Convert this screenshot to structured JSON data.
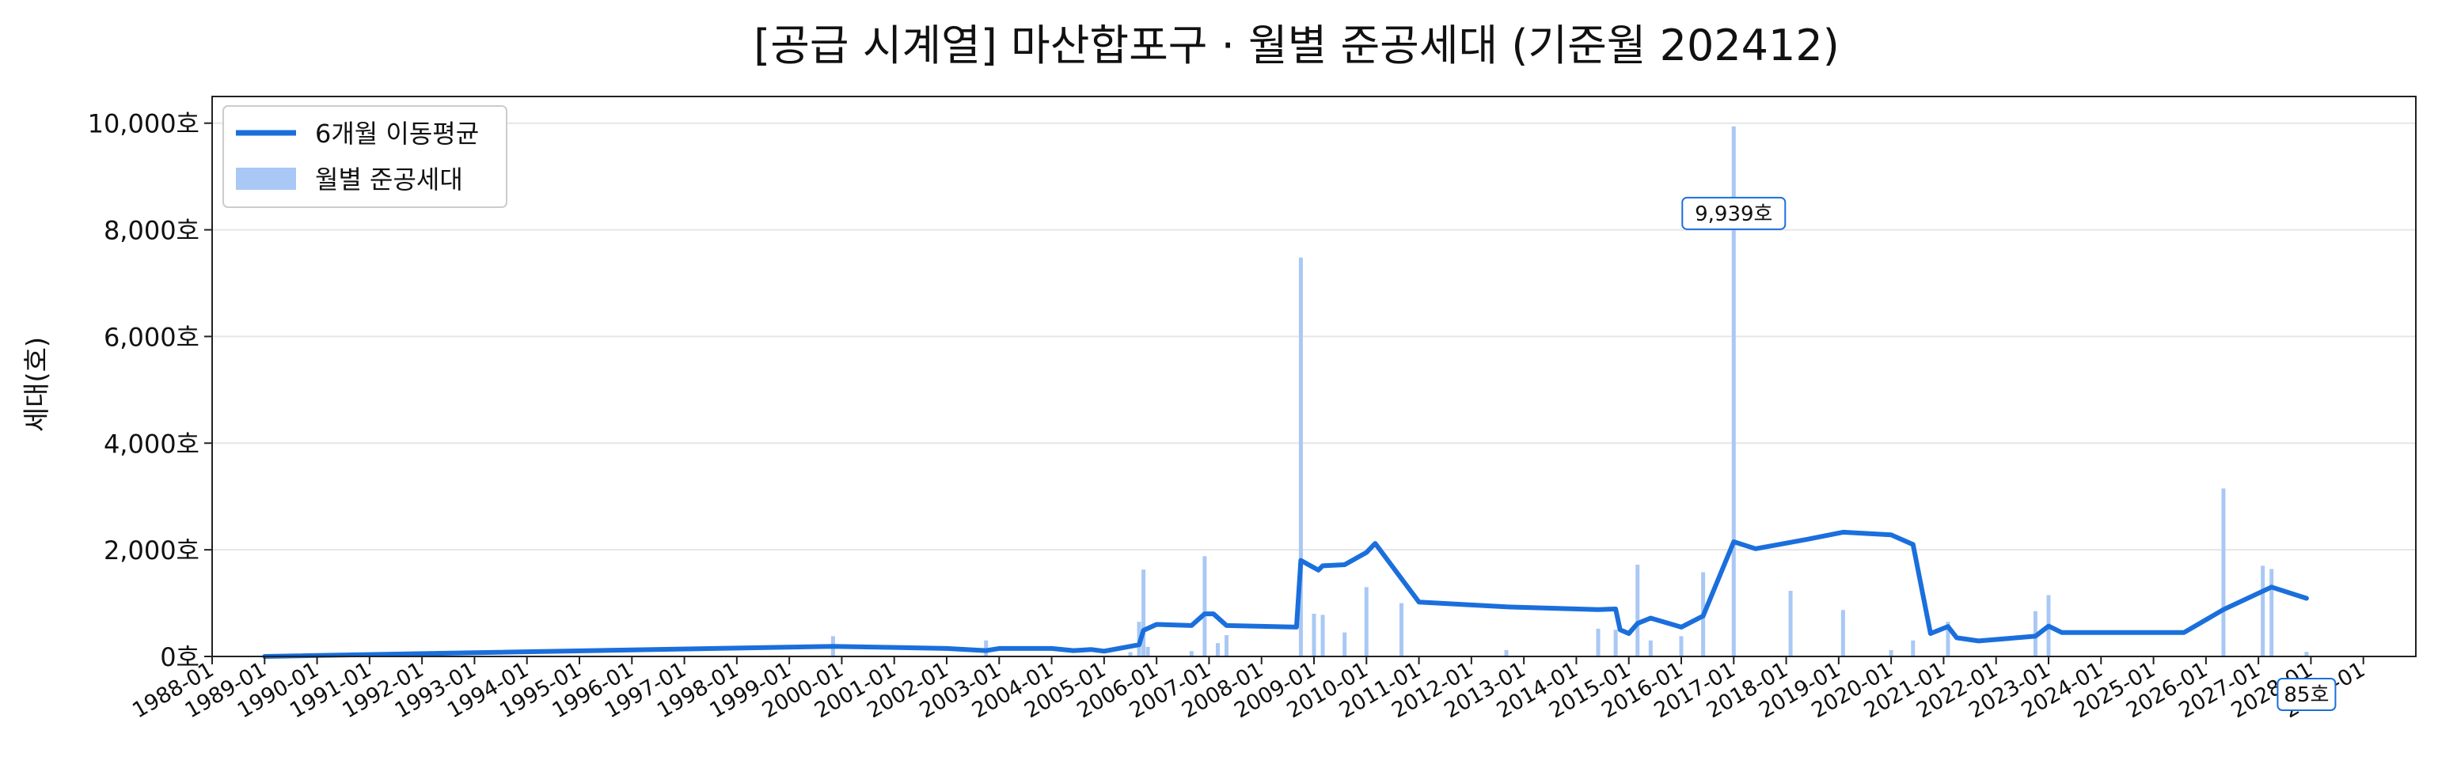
{
  "chart_data": {
    "type": "bar",
    "title": "[공급 시계열] 마산합포구 · 월별 준공세대 (기준월 202412)",
    "ylabel": "세대(호)",
    "xlabel": "",
    "ylim": [
      0,
      10500
    ],
    "xlim": [
      "1988-01",
      "2030-01"
    ],
    "y_ticks": [
      0,
      2000,
      4000,
      6000,
      8000,
      10000
    ],
    "y_tick_labels": [
      "0호",
      "2,000호",
      "4,000호",
      "6,000호",
      "8,000호",
      "10,000호"
    ],
    "x_tick_labels": [
      "1988-01",
      "1989-01",
      "1990-01",
      "1991-01",
      "1992-01",
      "1993-01",
      "1994-01",
      "1995-01",
      "1996-01",
      "1997-01",
      "1998-01",
      "1999-01",
      "2000-01",
      "2001-01",
      "2002-01",
      "2003-01",
      "2004-01",
      "2005-01",
      "2006-01",
      "2007-01",
      "2008-01",
      "2009-01",
      "2010-01",
      "2011-01",
      "2012-01",
      "2013-01",
      "2014-01",
      "2015-01",
      "2016-01",
      "2017-01",
      "2018-01",
      "2019-01",
      "2020-01",
      "2021-01",
      "2022-01",
      "2023-01",
      "2024-01",
      "2025-01",
      "2026-01",
      "2027-01",
      "2028-01",
      "2029-01"
    ],
    "grid": "horizontal",
    "legend_position": "upper-left",
    "colors": {
      "line": "#1a6fdc",
      "bar": "#a9c8f5",
      "frame": "#222222",
      "grid": "#e6e6e6"
    },
    "series": [
      {
        "name": "월별 준공세대",
        "kind": "bar",
        "points": [
          [
            "1999-11",
            380
          ],
          [
            "2002-10",
            300
          ],
          [
            "2005-07",
            80
          ],
          [
            "2005-09",
            650
          ],
          [
            "2005-10",
            1630
          ],
          [
            "2005-11",
            180
          ],
          [
            "2006-09",
            100
          ],
          [
            "2006-12",
            1880
          ],
          [
            "2007-03",
            250
          ],
          [
            "2007-05",
            400
          ],
          [
            "2008-10",
            7480
          ],
          [
            "2009-01",
            800
          ],
          [
            "2009-03",
            780
          ],
          [
            "2009-08",
            450
          ],
          [
            "2010-01",
            1300
          ],
          [
            "2010-09",
            1000
          ],
          [
            "2012-09",
            120
          ],
          [
            "2014-06",
            520
          ],
          [
            "2014-10",
            500
          ],
          [
            "2015-03",
            1720
          ],
          [
            "2015-06",
            300
          ],
          [
            "2016-01",
            380
          ],
          [
            "2016-06",
            1580
          ],
          [
            "2017-01",
            9939
          ],
          [
            "2018-02",
            1230
          ],
          [
            "2019-02",
            870
          ],
          [
            "2020-01",
            120
          ],
          [
            "2020-06",
            300
          ],
          [
            "2021-02",
            650
          ],
          [
            "2022-10",
            850
          ],
          [
            "2023-01",
            1150
          ],
          [
            "2026-05",
            3150
          ],
          [
            "2027-02",
            1700
          ],
          [
            "2027-04",
            1640
          ],
          [
            "2027-12",
            85
          ]
        ]
      },
      {
        "name": "6개월 이동평균",
        "kind": "line",
        "points": [
          [
            "1989-01",
            0
          ],
          [
            "1999-11",
            190
          ],
          [
            "2002-01",
            150
          ],
          [
            "2002-10",
            110
          ],
          [
            "2003-01",
            150
          ],
          [
            "2004-01",
            150
          ],
          [
            "2004-06",
            110
          ],
          [
            "2004-10",
            130
          ],
          [
            "2005-01",
            100
          ],
          [
            "2005-09",
            220
          ],
          [
            "2005-10",
            490
          ],
          [
            "2006-01",
            600
          ],
          [
            "2006-09",
            580
          ],
          [
            "2006-12",
            800
          ],
          [
            "2007-02",
            800
          ],
          [
            "2007-05",
            580
          ],
          [
            "2008-09",
            550
          ],
          [
            "2008-10",
            1800
          ],
          [
            "2009-02",
            1620
          ],
          [
            "2009-03",
            1700
          ],
          [
            "2009-08",
            1720
          ],
          [
            "2010-01",
            1950
          ],
          [
            "2010-03",
            2120
          ],
          [
            "2011-01",
            1020
          ],
          [
            "2012-09",
            930
          ],
          [
            "2014-06",
            880
          ],
          [
            "2014-10",
            890
          ],
          [
            "2014-11",
            500
          ],
          [
            "2015-01",
            430
          ],
          [
            "2015-03",
            620
          ],
          [
            "2015-06",
            720
          ],
          [
            "2016-01",
            550
          ],
          [
            "2016-06",
            760
          ],
          [
            "2017-01",
            2150
          ],
          [
            "2017-06",
            2020
          ],
          [
            "2018-06",
            2200
          ],
          [
            "2019-02",
            2330
          ],
          [
            "2020-01",
            2280
          ],
          [
            "2020-06",
            2100
          ],
          [
            "2020-10",
            430
          ],
          [
            "2021-02",
            560
          ],
          [
            "2021-04",
            350
          ],
          [
            "2021-09",
            290
          ],
          [
            "2022-10",
            380
          ],
          [
            "2023-01",
            570
          ],
          [
            "2023-04",
            450
          ],
          [
            "2025-08",
            450
          ],
          [
            "2026-05",
            880
          ],
          [
            "2027-04",
            1300
          ],
          [
            "2027-12",
            1090
          ]
        ]
      }
    ],
    "annotations": [
      {
        "date": "2017-01",
        "value": 9939,
        "text": "9,939호"
      },
      {
        "date": "2027-12",
        "value": 85,
        "text": "85호"
      }
    ]
  }
}
